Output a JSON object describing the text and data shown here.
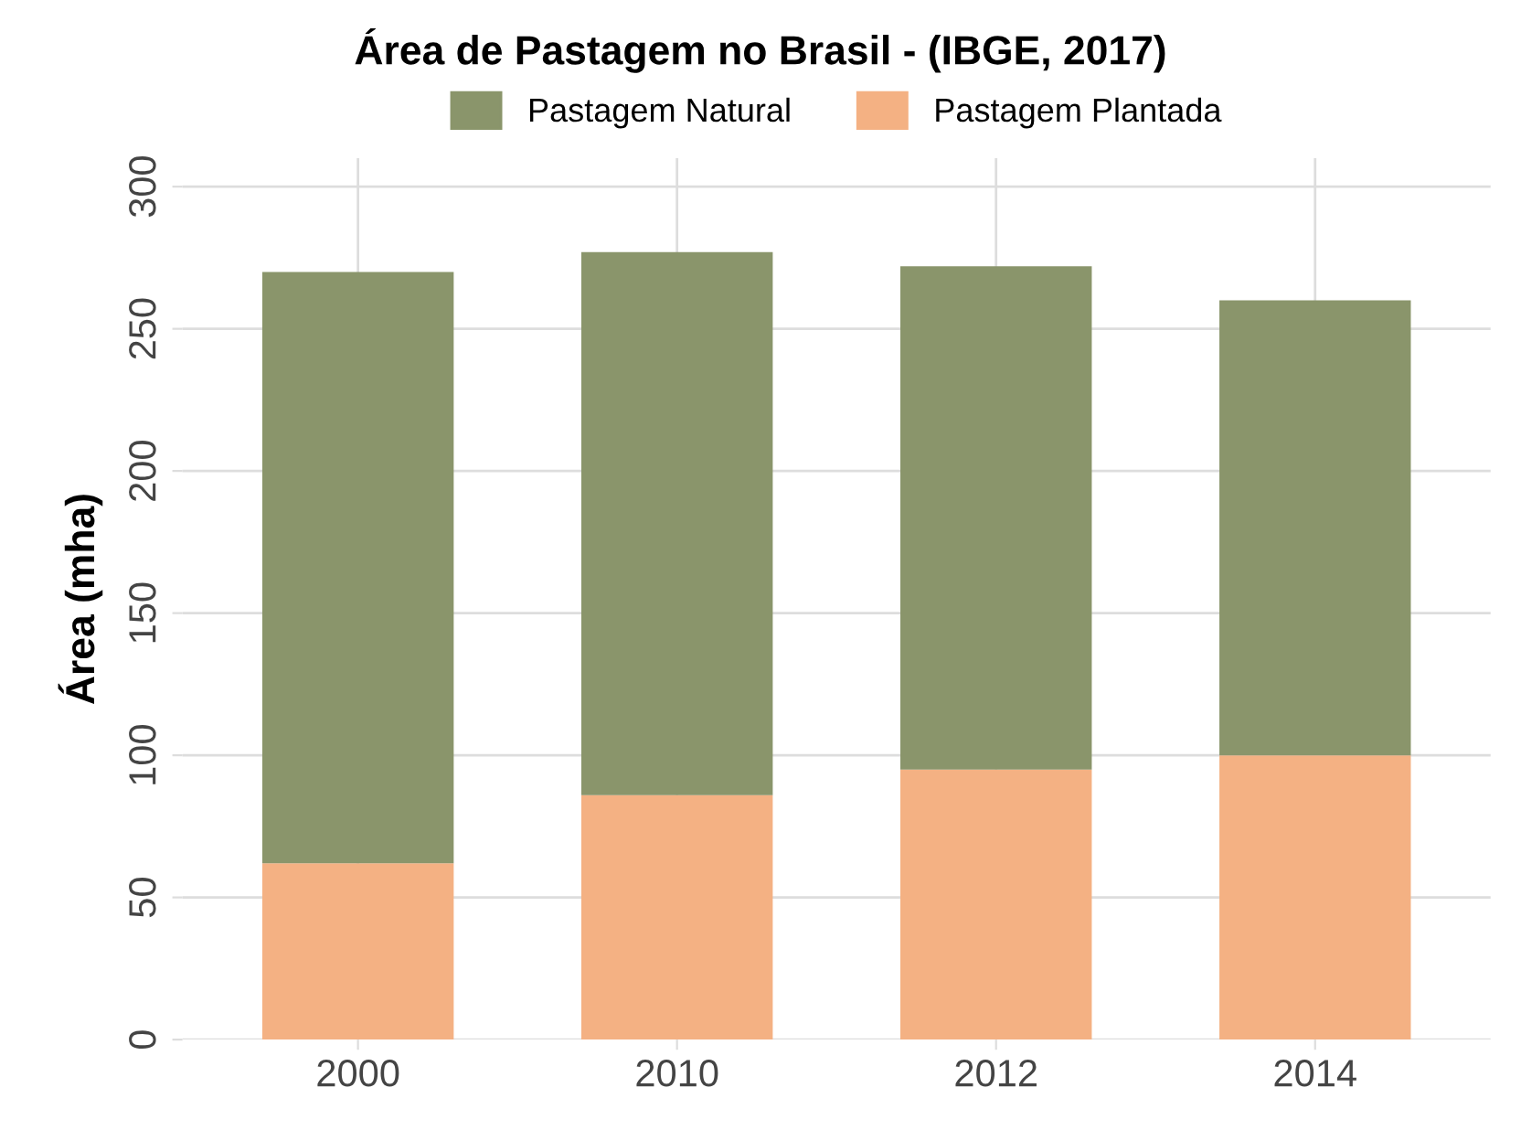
{
  "chart_data": {
    "type": "bar",
    "title": "Área de Pastagem no Brasil - (IBGE, 2017)",
    "ylabel": "Área (mha)",
    "categories": [
      "2000",
      "2010",
      "2012",
      "2014"
    ],
    "stacked": true,
    "series": [
      {
        "name": "Pastagem Plantada",
        "color": "#f4b183",
        "values": [
          62,
          86,
          95,
          100
        ]
      },
      {
        "name": "Pastagem Natural",
        "color": "#8a956b",
        "values": [
          208,
          191,
          177,
          160
        ]
      }
    ],
    "ylim": [
      0,
      310
    ],
    "yticks": [
      0,
      50,
      100,
      150,
      200,
      250,
      300
    ],
    "grid": true,
    "legend": "top"
  }
}
